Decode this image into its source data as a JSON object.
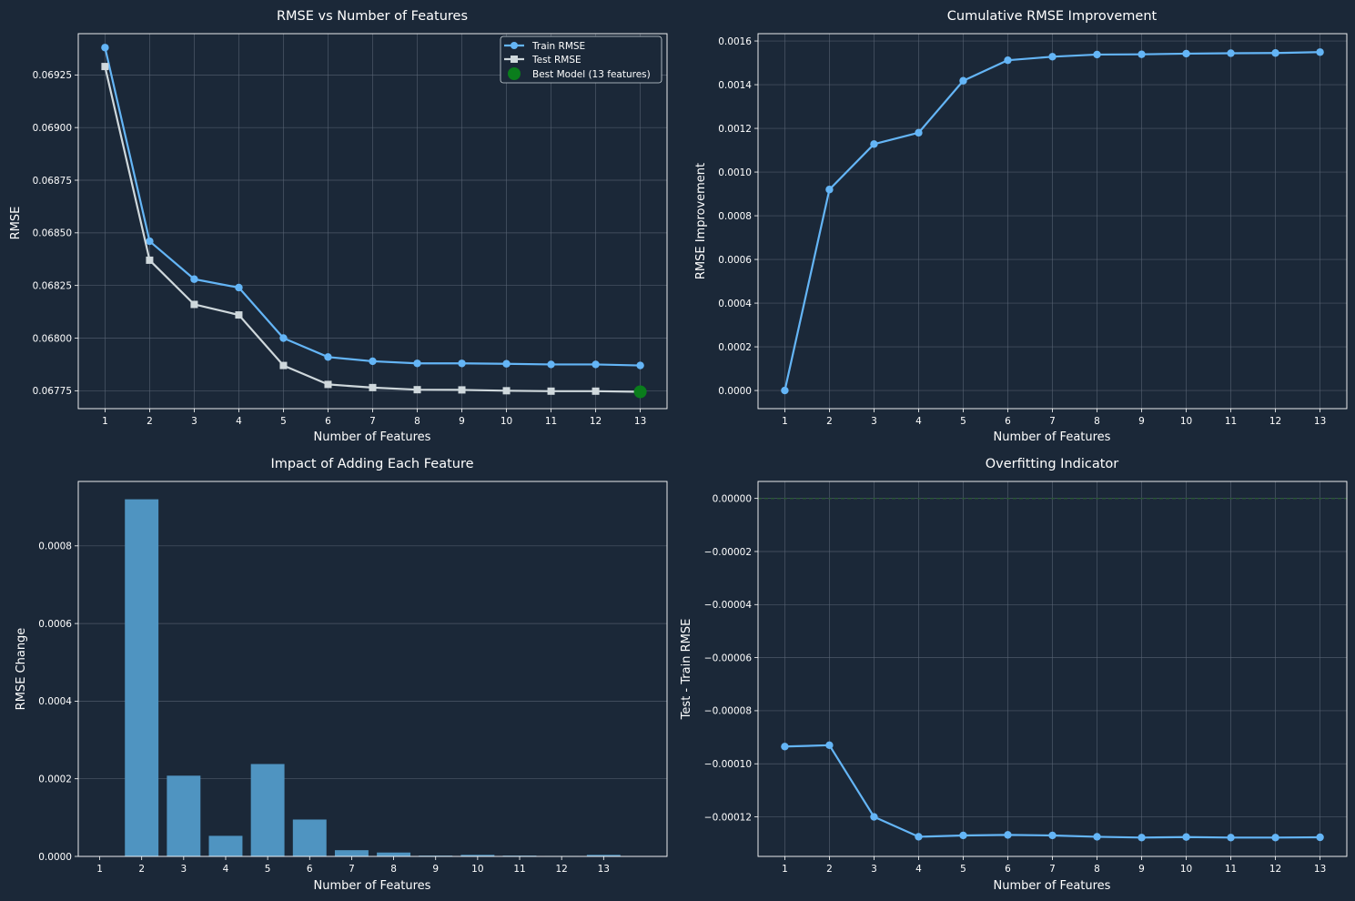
{
  "colors": {
    "background": "#1b2838",
    "text": "#ffffff",
    "frame": "#ffffff",
    "grid": "#5a6676",
    "train": "#64b5f6",
    "test": "#cfd8dc",
    "best": "#0a7d1c",
    "bar": "#4f94c1",
    "zero_line": "#2c5a36"
  },
  "chart_data": [
    {
      "type": "line",
      "title": "RMSE vs Number of Features",
      "xlabel": "Number of Features",
      "ylabel": "RMSE",
      "x": [
        1,
        2,
        3,
        4,
        5,
        6,
        7,
        8,
        9,
        10,
        11,
        12,
        13
      ],
      "xlim": [
        0.4,
        13.6
      ],
      "ylim": [
        0.067665,
        0.069446
      ],
      "yticks": [
        "0.06775",
        "0.06800",
        "0.06825",
        "0.06850",
        "0.06875",
        "0.06900",
        "0.06925"
      ],
      "grid": true,
      "legend_position": "top-right",
      "series": [
        {
          "name": "Train RMSE",
          "marker": "circle",
          "color": "train",
          "values": [
            0.06938,
            0.06846,
            0.06828,
            0.06824,
            0.068,
            0.06791,
            0.06789,
            0.06788,
            0.06788,
            0.067878,
            0.067875,
            0.067875,
            0.06787
          ]
        },
        {
          "name": "Test RMSE",
          "marker": "square",
          "color": "test",
          "values": [
            0.06929,
            0.06837,
            0.06816,
            0.06811,
            0.06787,
            0.06778,
            0.067765,
            0.067755,
            0.067754,
            0.06775,
            0.067748,
            0.067748,
            0.067745
          ]
        }
      ],
      "highlight": {
        "name": "Best Model (13 features)",
        "x": 13,
        "y": 0.067745,
        "color": "best"
      }
    },
    {
      "type": "line",
      "title": "Cumulative RMSE Improvement",
      "xlabel": "Number of Features",
      "ylabel": "RMSE Improvement",
      "x": [
        1,
        2,
        3,
        4,
        5,
        6,
        7,
        8,
        9,
        10,
        11,
        12,
        13
      ],
      "xlim": [
        0.4,
        13.6
      ],
      "ylim": [
        -8.3e-05,
        0.0016335
      ],
      "yticks": [
        "0.0000",
        "0.0002",
        "0.0004",
        "0.0006",
        "0.0008",
        "0.0010",
        "0.0012",
        "0.0014",
        "0.0016"
      ],
      "grid": true,
      "series": [
        {
          "marker": "circle",
          "color": "train",
          "values": [
            0.0,
            0.00092,
            0.001128,
            0.00118,
            0.001418,
            0.001512,
            0.001528,
            0.001538,
            0.001539,
            0.001542,
            0.001544,
            0.001545,
            0.001549
          ]
        }
      ]
    },
    {
      "type": "bar",
      "title": "Impact of Adding Each Feature",
      "xlabel": "Number of Features",
      "ylabel": "RMSE Change",
      "categories": [
        "1",
        "2",
        "3",
        "4",
        "5",
        "6",
        "7",
        "8",
        "9",
        "10",
        "11",
        "12",
        "13"
      ],
      "values": [
        0.0,
        0.00092,
        0.000208,
        5.3e-05,
        0.000238,
        9.5e-05,
        1.6e-05,
        1e-05,
        2e-06,
        4e-06,
        2e-06,
        1e-06,
        4e-06
      ],
      "xlim": [
        -0.51,
        13.51
      ],
      "ylim": [
        0.0,
        0.000966
      ],
      "yticks": [
        "0.0000",
        "0.0002",
        "0.0004",
        "0.0006",
        "0.0008"
      ],
      "grid": true
    },
    {
      "type": "line",
      "title": "Overfitting Indicator",
      "xlabel": "Number of Features",
      "ylabel": "Test - Train RMSE",
      "x": [
        1,
        2,
        3,
        4,
        5,
        6,
        7,
        8,
        9,
        10,
        11,
        12,
        13
      ],
      "xlim": [
        0.4,
        13.6
      ],
      "ylim": [
        -0.0001349,
        6.4e-06
      ],
      "yticks": [
        "0.00000",
        "−0.00002",
        "−0.00004",
        "−0.00006",
        "−0.00008",
        "−0.00010",
        "−0.00012"
      ],
      "grid": true,
      "reference_line": {
        "y": 0.0,
        "style": "dashed",
        "color": "zero_line"
      },
      "series": [
        {
          "marker": "circle",
          "color": "train",
          "values": [
            -9.35e-05,
            -9.3e-05,
            -0.00012,
            -0.0001275,
            -0.000127,
            -0.0001268,
            -0.000127,
            -0.0001275,
            -0.0001278,
            -0.0001276,
            -0.0001278,
            -0.0001278,
            -0.0001277
          ]
        }
      ]
    }
  ]
}
